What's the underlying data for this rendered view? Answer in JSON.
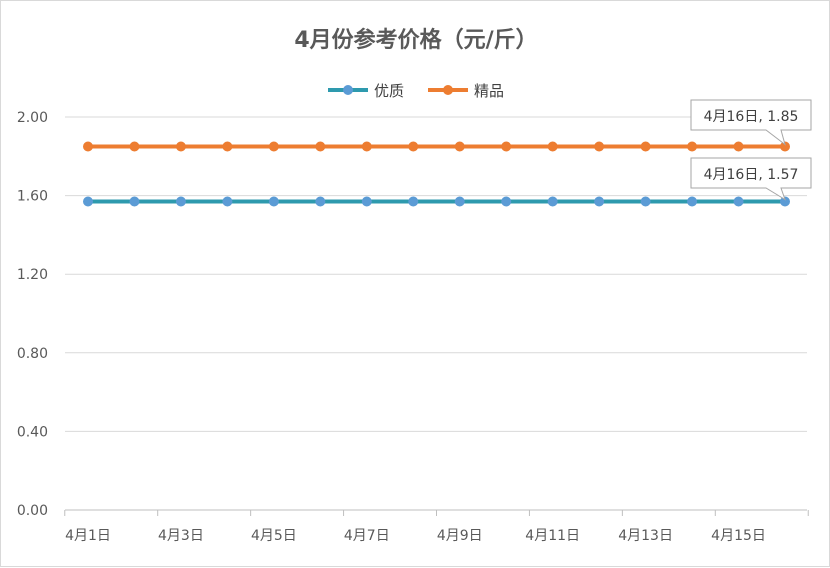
{
  "chart_data": {
    "type": "line",
    "title": "4月份参考价格（元/斤）",
    "xlabel": "",
    "ylabel": "",
    "x": [
      "4月1日",
      "4月2日",
      "4月3日",
      "4月4日",
      "4月5日",
      "4月6日",
      "4月7日",
      "4月8日",
      "4月9日",
      "4月10日",
      "4月11日",
      "4月12日",
      "4月13日",
      "4月14日",
      "4月15日",
      "4月16日"
    ],
    "x_tick_labels": [
      "4月1日",
      "4月3日",
      "4月5日",
      "4月7日",
      "4月9日",
      "4月11日",
      "4月13日",
      "4月15日"
    ],
    "ylim": [
      0,
      2.0
    ],
    "y_ticks": [
      "0.00",
      "0.40",
      "0.80",
      "1.20",
      "1.60",
      "2.00"
    ],
    "grid": true,
    "legend_position": "top-center",
    "series": [
      {
        "name": "优质",
        "color": "#2E9AAE",
        "marker_color": "#5B9BD5",
        "values": [
          1.57,
          1.57,
          1.57,
          1.57,
          1.57,
          1.57,
          1.57,
          1.57,
          1.57,
          1.57,
          1.57,
          1.57,
          1.57,
          1.57,
          1.57,
          1.57
        ],
        "annotation": "4月16日, 1.57"
      },
      {
        "name": "精品",
        "color": "#ED7D31",
        "marker_color": "#ED7D31",
        "values": [
          1.85,
          1.85,
          1.85,
          1.85,
          1.85,
          1.85,
          1.85,
          1.85,
          1.85,
          1.85,
          1.85,
          1.85,
          1.85,
          1.85,
          1.85,
          1.85
        ],
        "annotation": "4月16日, 1.85"
      }
    ]
  }
}
